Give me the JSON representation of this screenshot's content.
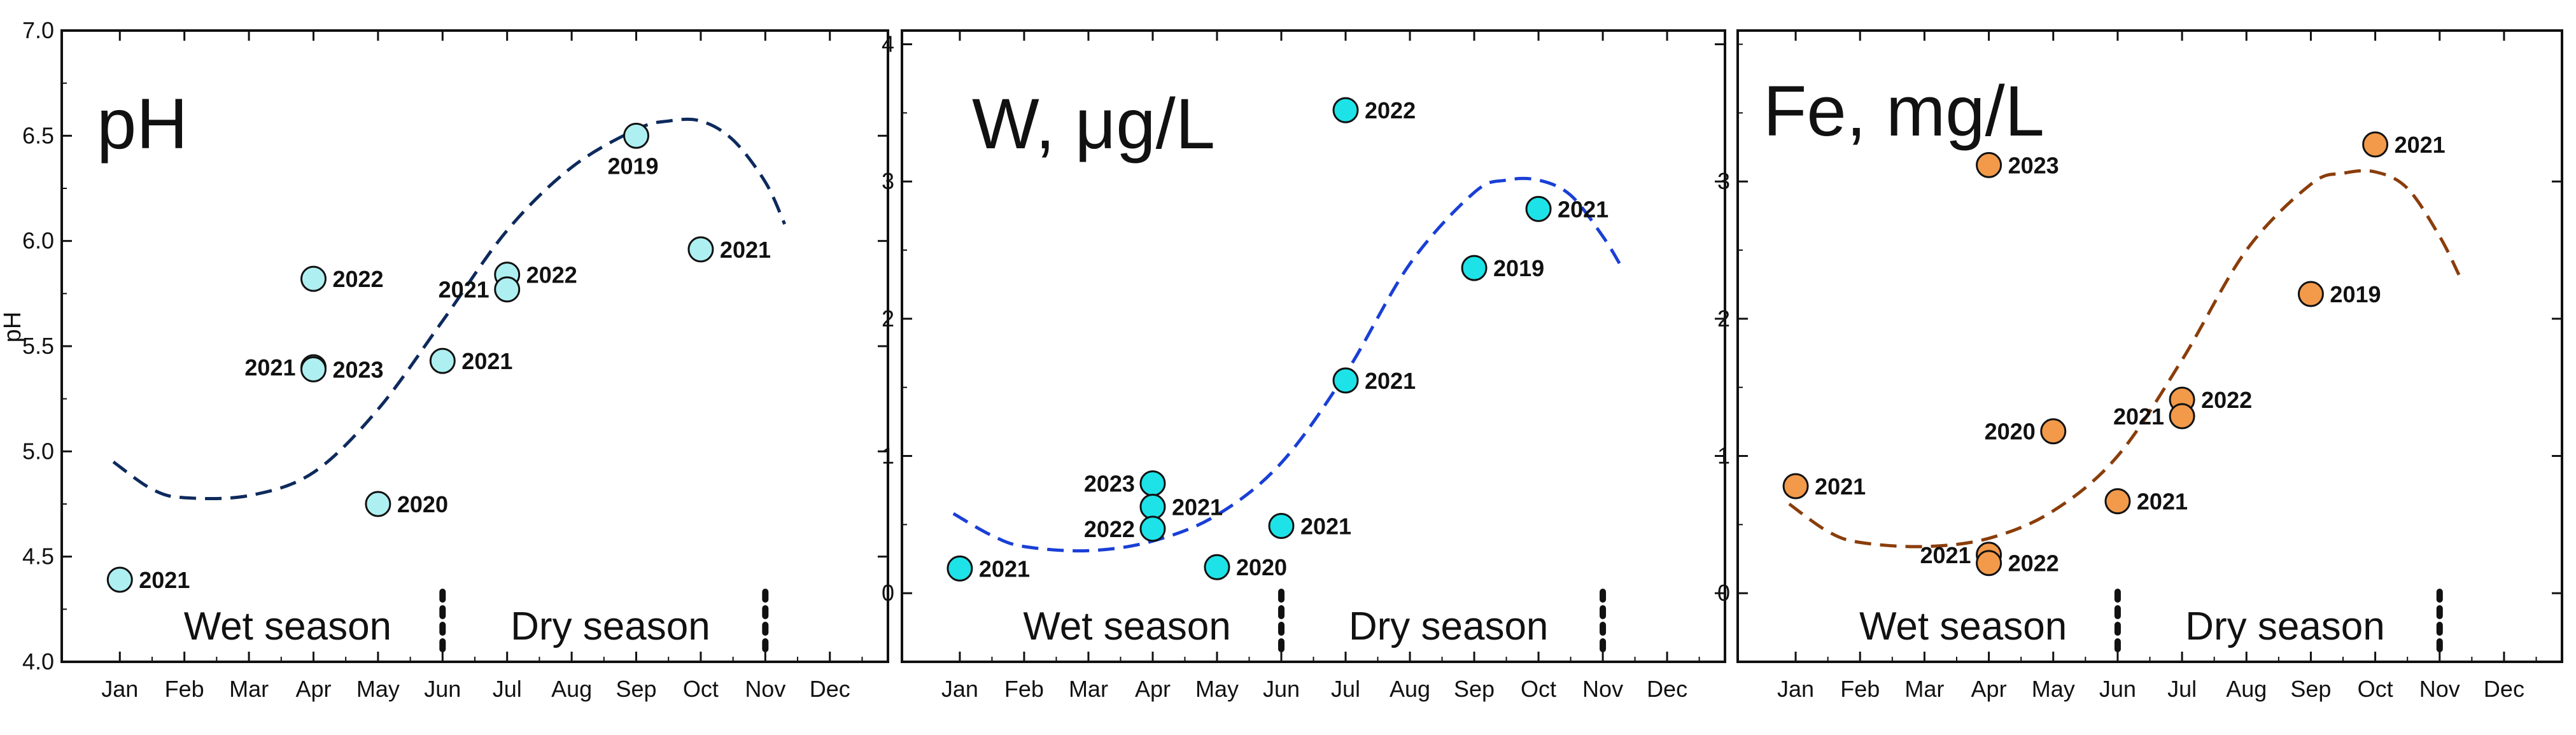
{
  "chart_data": [
    {
      "type": "scatter",
      "title": "pH",
      "ylabel": "pH",
      "xlabel": "",
      "months": [
        "Jan",
        "Feb",
        "Mar",
        "Apr",
        "May",
        "Jun",
        "Jul",
        "Aug",
        "Sep",
        "Oct",
        "Nov",
        "Dec"
      ],
      "ylim": [
        4.0,
        7.0
      ],
      "yticks": [
        "4.0",
        "4.5",
        "5.0",
        "5.5",
        "6.0",
        "6.5",
        "7.0"
      ],
      "ytick_values": [
        4.0,
        4.5,
        5.0,
        5.5,
        6.0,
        6.5,
        7.0
      ],
      "point_color": "#aef0f2",
      "trend_color": "#0d2a5c",
      "points": [
        {
          "x": 1,
          "y": 4.39,
          "label": "2021",
          "label_side": "right"
        },
        {
          "x": 4,
          "y": 5.82,
          "label": "2022",
          "label_side": "right"
        },
        {
          "x": 4,
          "y": 5.4,
          "label": "2021",
          "label_side": "left"
        },
        {
          "x": 4,
          "y": 5.39,
          "label": "2023",
          "label_side": "right"
        },
        {
          "x": 5,
          "y": 4.75,
          "label": "2020",
          "label_side": "right"
        },
        {
          "x": 6,
          "y": 5.43,
          "label": "2021",
          "label_side": "right"
        },
        {
          "x": 7,
          "y": 5.84,
          "label": "2022",
          "label_side": "right"
        },
        {
          "x": 7,
          "y": 5.77,
          "label": "2021",
          "label_side": "left"
        },
        {
          "x": 9,
          "y": 6.5,
          "label": "2019",
          "label_side": "below"
        },
        {
          "x": 10,
          "y": 5.96,
          "label": "2021",
          "label_side": "right"
        }
      ],
      "trend": {
        "x": [
          0.9,
          1.5,
          2.0,
          3.0,
          4.0,
          5.0,
          6.0,
          7.0,
          8.0,
          9.0,
          9.5,
          10.0,
          10.5,
          11.0,
          11.3
        ],
        "y": [
          4.95,
          4.82,
          4.78,
          4.79,
          4.9,
          5.2,
          5.62,
          6.05,
          6.35,
          6.53,
          6.57,
          6.57,
          6.48,
          6.28,
          6.08
        ]
      },
      "season_labels": {
        "wet": "Wet season",
        "dry": "Dry season"
      }
    },
    {
      "type": "scatter",
      "title": "W, μg/L",
      "ylabel": "",
      "xlabel": "",
      "months": [
        "Jan",
        "Feb",
        "Mar",
        "Apr",
        "May",
        "Jun",
        "Jul",
        "Aug",
        "Sep",
        "Oct",
        "Nov",
        "Dec"
      ],
      "ylim": [
        -0.5,
        4.1
      ],
      "yticks": [
        "0",
        "1",
        "2",
        "3",
        "4"
      ],
      "ytick_values": [
        0,
        1,
        2,
        3,
        4
      ],
      "point_color": "#1de3e8",
      "trend_color": "#1a3fd6",
      "points": [
        {
          "x": 1,
          "y": 0.18,
          "label": "2021",
          "label_side": "right"
        },
        {
          "x": 4,
          "y": 0.8,
          "label": "2023",
          "label_side": "left"
        },
        {
          "x": 4,
          "y": 0.63,
          "label": "2021",
          "label_side": "right"
        },
        {
          "x": 4,
          "y": 0.47,
          "label": "2022",
          "label_side": "left"
        },
        {
          "x": 5,
          "y": 0.19,
          "label": "2020",
          "label_side": "right"
        },
        {
          "x": 6,
          "y": 0.49,
          "label": "2021",
          "label_side": "right"
        },
        {
          "x": 7,
          "y": 3.52,
          "label": "2022",
          "label_side": "right"
        },
        {
          "x": 7,
          "y": 1.55,
          "label": "2021",
          "label_side": "right"
        },
        {
          "x": 9,
          "y": 2.37,
          "label": "2019",
          "label_side": "right"
        },
        {
          "x": 10,
          "y": 2.8,
          "label": "2021",
          "label_side": "right"
        }
      ],
      "trend": {
        "x": [
          0.9,
          1.5,
          2.0,
          3.0,
          4.0,
          5.0,
          6.0,
          7.0,
          8.0,
          9.0,
          9.5,
          10.0,
          10.5,
          11.0,
          11.3
        ],
        "y": [
          0.58,
          0.42,
          0.34,
          0.31,
          0.38,
          0.57,
          0.95,
          1.6,
          2.4,
          2.92,
          3.01,
          3.01,
          2.9,
          2.6,
          2.37
        ]
      },
      "season_labels": {
        "wet": "Wet season",
        "dry": "Dry season"
      }
    },
    {
      "type": "scatter",
      "title": "Fe, mg/L",
      "ylabel": "",
      "xlabel": "",
      "months": [
        "Jan",
        "Feb",
        "Mar",
        "Apr",
        "May",
        "Jun",
        "Jul",
        "Aug",
        "Sep",
        "Oct",
        "Nov",
        "Dec"
      ],
      "ylim": [
        -0.5,
        4.1
      ],
      "yticks": [
        "0",
        "1",
        "2",
        "3"
      ],
      "ytick_values": [
        0,
        1,
        2,
        3
      ],
      "point_color": "#f29a4a",
      "trend_color": "#8a3d0a",
      "points": [
        {
          "x": 1,
          "y": 0.78,
          "label": "2021",
          "label_side": "right"
        },
        {
          "x": 4,
          "y": 3.12,
          "label": "2023",
          "label_side": "right"
        },
        {
          "x": 4,
          "y": 0.28,
          "label": "2021",
          "label_side": "left"
        },
        {
          "x": 4,
          "y": 0.22,
          "label": "2022",
          "label_side": "right"
        },
        {
          "x": 5,
          "y": 1.18,
          "label": "2020",
          "label_side": "left"
        },
        {
          "x": 6,
          "y": 0.67,
          "label": "2021",
          "label_side": "right"
        },
        {
          "x": 7,
          "y": 1.41,
          "label": "2022",
          "label_side": "right"
        },
        {
          "x": 7,
          "y": 1.29,
          "label": "2021",
          "label_side": "left"
        },
        {
          "x": 9,
          "y": 2.18,
          "label": "2019",
          "label_side": "right"
        },
        {
          "x": 10,
          "y": 3.27,
          "label": "2021",
          "label_side": "right"
        }
      ],
      "trend": {
        "x": [
          0.9,
          1.5,
          2.0,
          3.0,
          4.0,
          5.0,
          6.0,
          7.0,
          8.0,
          9.0,
          9.5,
          10.0,
          10.5,
          11.0,
          11.3
        ],
        "y": [
          0.65,
          0.45,
          0.37,
          0.34,
          0.4,
          0.6,
          1.0,
          1.7,
          2.5,
          2.98,
          3.06,
          3.07,
          2.95,
          2.6,
          2.32
        ]
      },
      "season_labels": {
        "wet": "Wet season",
        "dry": "Dry season"
      }
    }
  ]
}
